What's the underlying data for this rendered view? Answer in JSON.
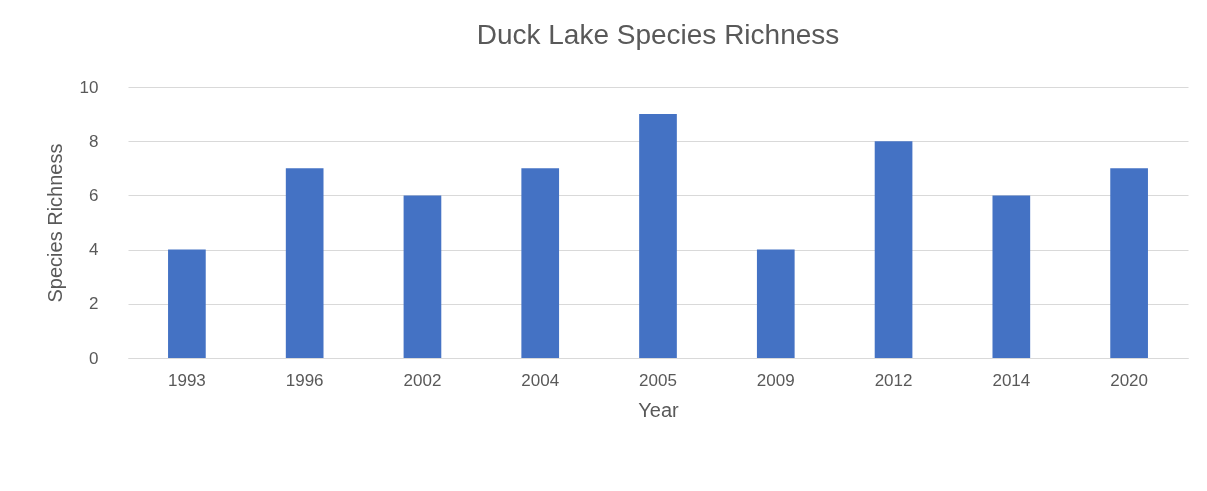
{
  "chart_data": {
    "type": "bar",
    "title": "Duck Lake Species Richness",
    "xlabel": "Year",
    "ylabel": "Species Richness",
    "categories": [
      "1993",
      "1996",
      "2002",
      "2004",
      "2005",
      "2009",
      "2012",
      "2014",
      "2020"
    ],
    "values": [
      4,
      7,
      6,
      7,
      9,
      4,
      8,
      6,
      7
    ],
    "color": "#4472c4",
    "ylim": [
      0,
      10
    ],
    "yticks": [
      0,
      2,
      4,
      6,
      8,
      10
    ],
    "grid": "y"
  }
}
